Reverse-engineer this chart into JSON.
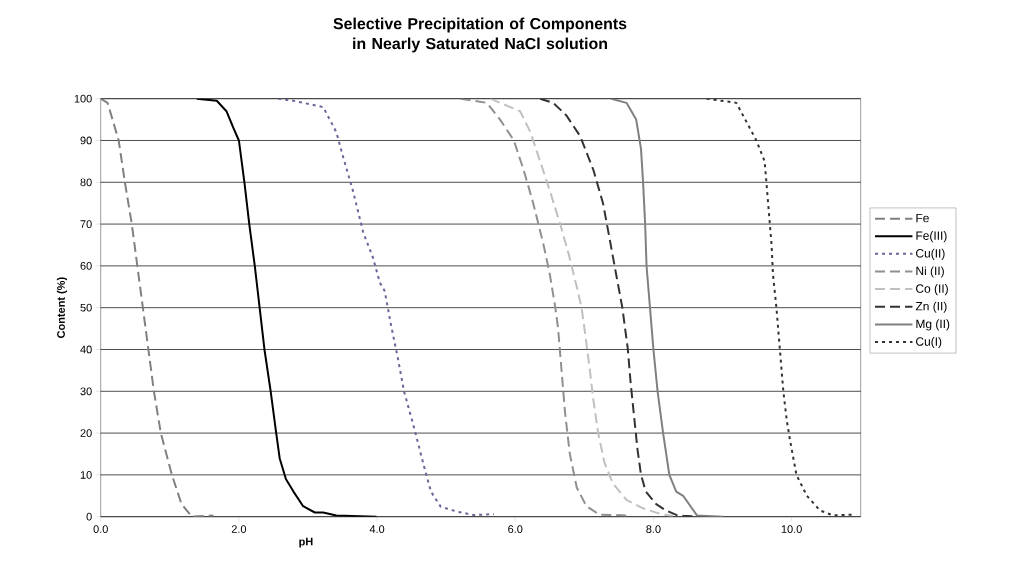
{
  "chart_data": {
    "type": "line",
    "title": "Selective Precipitation of Components in Nearly Saturated NaCl solution",
    "xlabel": "pH",
    "ylabel": "Content (%)",
    "xlim": [
      0,
      11
    ],
    "ylim": [
      0,
      100
    ],
    "xticks": [
      {
        "value": 0,
        "label": "0.0"
      },
      {
        "value": 2,
        "label": "2.0"
      },
      {
        "value": 4,
        "label": "4.0"
      },
      {
        "value": 6,
        "label": "6.0"
      },
      {
        "value": 8,
        "label": "8.0"
      },
      {
        "value": 10,
        "label": "10.0"
      }
    ],
    "yticks": [
      0,
      10,
      20,
      30,
      40,
      50,
      60,
      70,
      80,
      90,
      100
    ],
    "grid": "y",
    "legend": "right",
    "marker": "none",
    "series": [
      {
        "name": "Fe",
        "color": "#808080",
        "line_style": "dashed",
        "x": [
          0,
          0.1,
          0.26,
          0.35,
          0.45,
          0.53,
          0.61,
          0.69,
          0.77,
          0.87,
          1.03,
          1.17,
          1.32,
          1.63
        ],
        "values": [
          100,
          99,
          90,
          80,
          70,
          60,
          50,
          40,
          30,
          20,
          10,
          3,
          0,
          0.3
        ]
      },
      {
        "name": "Fe(III)",
        "color": "#000000",
        "line_style": "solid",
        "x": [
          1.39,
          1.68,
          1.82,
          1.92,
          2.0,
          2.08,
          2.15,
          2.23,
          2.3,
          2.37,
          2.46,
          2.54,
          2.59,
          2.68,
          2.79,
          2.93,
          3.1,
          3.22,
          3.41,
          3.99
        ],
        "values": [
          100,
          99.5,
          97,
          93,
          90,
          80,
          70,
          60,
          50,
          40,
          30,
          20,
          14,
          9,
          6,
          2.5,
          1,
          1,
          0.3,
          0
        ]
      },
      {
        "name": "Cu(II)",
        "color": "#666699",
        "line_style": "dotted",
        "x": [
          2.57,
          2.79,
          3.22,
          3.41,
          3.51,
          3.65,
          3.8,
          3.94,
          4.04,
          4.11,
          4.2,
          4.3,
          4.39,
          4.54,
          4.68,
          4.78,
          4.92,
          5.16,
          5.4,
          5.69
        ],
        "values": [
          100,
          99.5,
          98,
          92,
          86,
          78,
          68,
          62,
          56,
          54,
          46,
          38,
          30,
          21,
          12,
          6,
          2.4,
          1.2,
          0.4,
          0.6
        ]
      },
      {
        "name": "Ni (II)",
        "color": "#909090",
        "line_style": "dashed",
        "x": [
          5.21,
          5.59,
          5.78,
          5.98,
          6.12,
          6.26,
          6.41,
          6.5,
          6.58,
          6.62,
          6.67,
          6.72,
          6.79,
          6.89,
          7.03,
          7.22,
          7.61
        ],
        "values": [
          100,
          99,
          95,
          90,
          83,
          75,
          65,
          58,
          50,
          45,
          35,
          25,
          15,
          7,
          2.5,
          0.5,
          0.3
        ]
      },
      {
        "name": "Co (II)",
        "color": "#c0c0c0",
        "line_style": "dashed",
        "x": [
          5.64,
          6.07,
          6.22,
          6.36,
          6.5,
          6.65,
          6.77,
          6.89,
          6.96,
          7.01,
          7.08,
          7.13,
          7.2,
          7.29,
          7.41,
          7.61,
          7.85,
          8.13,
          8.28
        ],
        "values": [
          100,
          97,
          92,
          85,
          78,
          70,
          63,
          55,
          50,
          44,
          35,
          28,
          20,
          13,
          8,
          4,
          2,
          0.5,
          0.2
        ]
      },
      {
        "name": "Zn (II)",
        "color": "#333333",
        "line_style": "dashed",
        "x": [
          6.36,
          6.55,
          6.74,
          6.94,
          7.13,
          7.27,
          7.36,
          7.46,
          7.55,
          7.63,
          7.67,
          7.72,
          7.77,
          7.82,
          7.89,
          8.04,
          8.18,
          8.35,
          8.43,
          8.77
        ],
        "values": [
          100,
          99,
          96,
          91,
          83,
          75,
          67,
          58,
          50,
          40,
          32,
          24,
          16,
          10,
          6,
          3,
          1.5,
          0.3,
          0.2,
          0
        ]
      },
      {
        "name": "Mg (II)",
        "color": "#808080",
        "line_style": "solid",
        "x": [
          7.39,
          7.61,
          7.75,
          7.82,
          7.85,
          7.88,
          7.9,
          7.95,
          8.0,
          8.06,
          8.14,
          8.23,
          8.33,
          8.43,
          8.63,
          9.01
        ],
        "values": [
          100,
          99,
          95,
          88,
          80,
          70,
          60,
          50,
          40,
          30,
          20,
          10,
          6,
          5,
          0.3,
          0
        ]
      },
      {
        "name": "Cu(I)",
        "color": "#333333",
        "line_style": "dotted",
        "x": [
          8.77,
          9.2,
          9.49,
          9.61,
          9.66,
          9.71,
          9.73,
          9.78,
          9.83,
          9.88,
          9.93,
          9.98,
          10.07,
          10.22,
          10.41,
          10.6,
          10.89
        ],
        "values": [
          100,
          99,
          90,
          85,
          75,
          65,
          58,
          50,
          40,
          30,
          23,
          18,
          10,
          5,
          1.5,
          0.3,
          0.5
        ]
      }
    ]
  }
}
